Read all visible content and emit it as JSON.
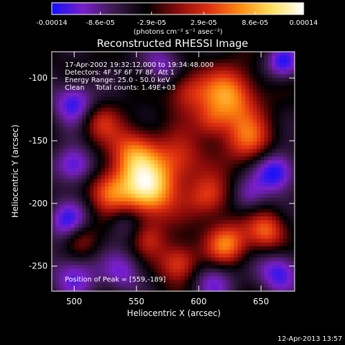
{
  "colorbar": {
    "tick_labels": [
      "-0.00014",
      "-8.6e-05",
      "-2.9e-05",
      "2.9e-05",
      "8.6e-05",
      "0.00014"
    ],
    "tick_values": [
      -0.00014,
      -8.6e-05,
      -2.9e-05,
      2.9e-05,
      8.6e-05,
      0.00014
    ],
    "range": [
      -0.00014,
      0.00014
    ],
    "units_label": "(photons cm⁻² s⁻¹ asec⁻²)",
    "colors": [
      "#1010ff",
      "#7a1fc8",
      "#3a1a4a",
      "#000000",
      "#8a0a0a",
      "#e03010",
      "#ff8c10",
      "#ffe060",
      "#ffffff"
    ]
  },
  "title": "Reconstructed RHESSI Image",
  "info": {
    "line1": "17-Apr-2002 19:32:12.000 to 19:34:48.000",
    "line2": "Detectors: 4F 5F 6F 7F 8F, Att 1",
    "line3": "Energy Range: 25.0 - 50.0 keV",
    "line4": "Clean     Total counts: 1.49E+03"
  },
  "peak_label": "Position of Peak = [559,-189]",
  "footer_date": "12-Apr-2013 13:57",
  "chart_data": {
    "type": "heatmap",
    "title": "Reconstructed RHESSI Image",
    "xlabel": "Heliocentric X (arcsec)",
    "ylabel": "Heliocentric Y (arcsec)",
    "xlim": [
      482,
      677
    ],
    "ylim": [
      -270,
      -79
    ],
    "x_ticks": [
      500,
      550,
      600,
      650
    ],
    "y_ticks": [
      -100,
      -150,
      -200,
      -250
    ],
    "x_tick_labels": [
      "500",
      "550",
      "600",
      "650"
    ],
    "y_tick_labels": [
      "-100",
      "-150",
      "-200",
      "-250"
    ],
    "peak": [
      559,
      -189
    ],
    "value_range": [
      -0.00014,
      0.00014
    ],
    "blobs": [
      {
        "x": 559,
        "y": -189,
        "amp": 1.0,
        "w": 16
      },
      {
        "x": 548,
        "y": -160,
        "amp": 0.65,
        "w": 14
      },
      {
        "x": 528,
        "y": -190,
        "amp": 0.55,
        "w": 12
      },
      {
        "x": 585,
        "y": -165,
        "amp": 0.45,
        "w": 14
      },
      {
        "x": 590,
        "y": -110,
        "amp": 0.45,
        "w": 12
      },
      {
        "x": 625,
        "y": -115,
        "amp": 0.75,
        "w": 16
      },
      {
        "x": 640,
        "y": -150,
        "amp": 0.55,
        "w": 14
      },
      {
        "x": 608,
        "y": -195,
        "amp": 0.5,
        "w": 12
      },
      {
        "x": 622,
        "y": -232,
        "amp": 0.7,
        "w": 12
      },
      {
        "x": 655,
        "y": -222,
        "amp": 0.6,
        "w": 11
      },
      {
        "x": 584,
        "y": -248,
        "amp": 0.6,
        "w": 11
      },
      {
        "x": 560,
        "y": -228,
        "amp": 0.35,
        "w": 10
      },
      {
        "x": 520,
        "y": -135,
        "amp": 0.4,
        "w": 11
      },
      {
        "x": 505,
        "y": -228,
        "amp": 0.4,
        "w": 10
      },
      {
        "x": 610,
        "y": -135,
        "amp": 0.35,
        "w": 10
      },
      {
        "x": 500,
        "y": -120,
        "amp": -0.6,
        "w": 12
      },
      {
        "x": 500,
        "y": -170,
        "amp": -0.6,
        "w": 11
      },
      {
        "x": 495,
        "y": -215,
        "amp": -0.55,
        "w": 12
      },
      {
        "x": 500,
        "y": -258,
        "amp": -0.5,
        "w": 13
      },
      {
        "x": 540,
        "y": -255,
        "amp": -0.4,
        "w": 12
      },
      {
        "x": 570,
        "y": -90,
        "amp": -0.4,
        "w": 12
      },
      {
        "x": 662,
        "y": -175,
        "amp": -0.7,
        "w": 12
      },
      {
        "x": 665,
        "y": -255,
        "amp": -0.6,
        "w": 12
      },
      {
        "x": 668,
        "y": -88,
        "amp": -0.6,
        "w": 10
      },
      {
        "x": 640,
        "y": -195,
        "amp": -0.35,
        "w": 10
      },
      {
        "x": 540,
        "y": -215,
        "amp": -0.3,
        "w": 10
      },
      {
        "x": 612,
        "y": -262,
        "amp": -0.45,
        "w": 12
      }
    ]
  }
}
